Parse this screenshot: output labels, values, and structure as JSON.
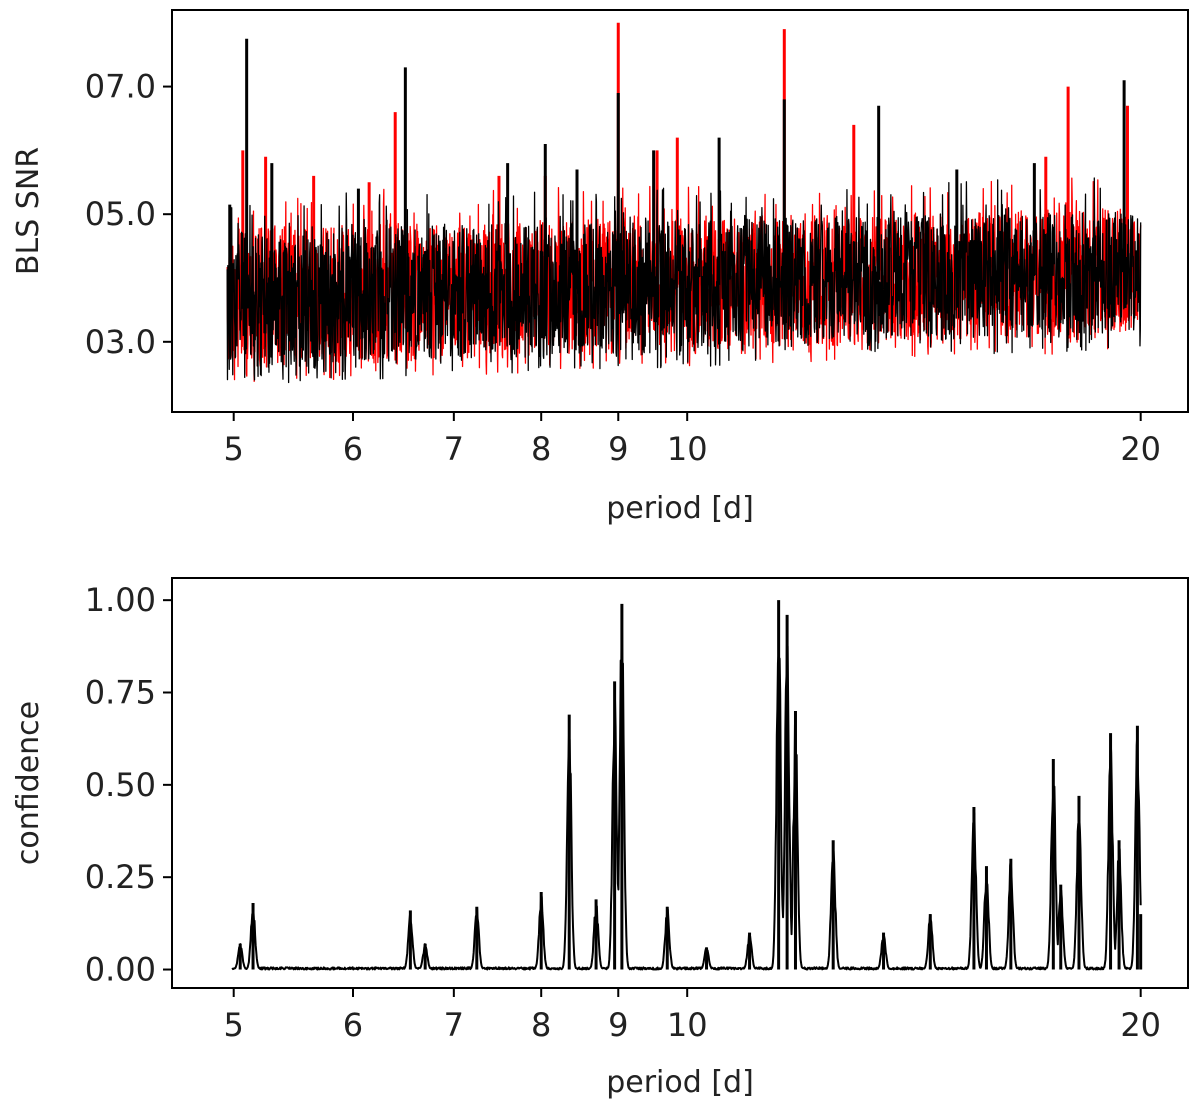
{
  "chart_data": [
    {
      "type": "line",
      "xscale": "log",
      "xlabel": "period [d]",
      "ylabel": "BLS SNR",
      "xlim": [
        4.55,
        21.5
      ],
      "ylim": [
        1.9,
        8.2
      ],
      "xticks": [
        5,
        6,
        7,
        8,
        9,
        10,
        20
      ],
      "xtick_labels": [
        "5",
        "6",
        "7",
        "8",
        "9",
        "10",
        "20"
      ],
      "yticks": [
        3,
        5,
        7
      ],
      "ytick_labels": [
        "03.0",
        "05.0",
        "07.0"
      ],
      "grid": false,
      "series": [
        {
          "color": "#ff0000",
          "band": {
            "x": [
              4.95,
              20.0
            ],
            "low": [
              2.6,
              3.1
            ],
            "high": [
              4.8,
              5.1
            ]
          },
          "peaks": [
            [
              5.07,
              6.0
            ],
            [
              5.25,
              5.9
            ],
            [
              5.65,
              5.6
            ],
            [
              6.15,
              5.5
            ],
            [
              6.4,
              6.6
            ],
            [
              7.5,
              5.6
            ],
            [
              8.05,
              5.6
            ],
            [
              9.0,
              8.0
            ],
            [
              9.55,
              6.0
            ],
            [
              9.85,
              6.2
            ],
            [
              11.6,
              7.9
            ],
            [
              12.9,
              6.4
            ],
            [
              17.3,
              5.9
            ],
            [
              17.9,
              7.0
            ],
            [
              19.6,
              6.7
            ]
          ]
        },
        {
          "color": "#000000",
          "band": {
            "x": [
              4.95,
              20.0
            ],
            "low": [
              2.55,
              3.15
            ],
            "high": [
              4.75,
              5.05
            ]
          },
          "peaks": [
            [
              4.97,
              5.15
            ],
            [
              5.1,
              7.75
            ],
            [
              5.3,
              5.8
            ],
            [
              6.05,
              5.4
            ],
            [
              6.5,
              7.3
            ],
            [
              7.6,
              5.8
            ],
            [
              8.05,
              6.1
            ],
            [
              8.45,
              5.7
            ],
            [
              9.0,
              6.9
            ],
            [
              9.5,
              6.0
            ],
            [
              10.5,
              6.2
            ],
            [
              11.6,
              6.8
            ],
            [
              13.4,
              6.7
            ],
            [
              15.1,
              5.7
            ],
            [
              17.0,
              5.8
            ],
            [
              19.5,
              7.1
            ]
          ]
        }
      ]
    },
    {
      "type": "line",
      "xscale": "log",
      "xlabel": "period [d]",
      "ylabel": "confidence",
      "xlim": [
        4.55,
        21.5
      ],
      "ylim": [
        -0.05,
        1.06
      ],
      "xticks": [
        5,
        6,
        7,
        8,
        9,
        10,
        20
      ],
      "xtick_labels": [
        "5",
        "6",
        "7",
        "8",
        "9",
        "10",
        "20"
      ],
      "yticks": [
        0,
        0.25,
        0.5,
        0.75,
        1.0
      ],
      "ytick_labels": [
        "0.00",
        "0.25",
        "0.50",
        "0.75",
        "1.00"
      ],
      "grid": false,
      "series": [
        {
          "color": "#000000",
          "peaks": [
            [
              5.05,
              0.07
            ],
            [
              5.15,
              0.18
            ],
            [
              6.55,
              0.16
            ],
            [
              6.7,
              0.07
            ],
            [
              7.25,
              0.17
            ],
            [
              8.0,
              0.21
            ],
            [
              8.35,
              0.69
            ],
            [
              8.7,
              0.19
            ],
            [
              8.95,
              0.78
            ],
            [
              9.05,
              0.99
            ],
            [
              9.7,
              0.17
            ],
            [
              10.3,
              0.06
            ],
            [
              11.0,
              0.1
            ],
            [
              11.5,
              1.0
            ],
            [
              11.65,
              0.96
            ],
            [
              11.8,
              0.7
            ],
            [
              12.5,
              0.35
            ],
            [
              13.5,
              0.1
            ],
            [
              14.5,
              0.15
            ],
            [
              15.5,
              0.44
            ],
            [
              15.8,
              0.28
            ],
            [
              16.4,
              0.3
            ],
            [
              17.5,
              0.57
            ],
            [
              17.7,
              0.23
            ],
            [
              18.2,
              0.47
            ],
            [
              19.1,
              0.64
            ],
            [
              19.35,
              0.35
            ],
            [
              19.9,
              0.66
            ],
            [
              20.0,
              0.15
            ]
          ]
        }
      ]
    }
  ]
}
